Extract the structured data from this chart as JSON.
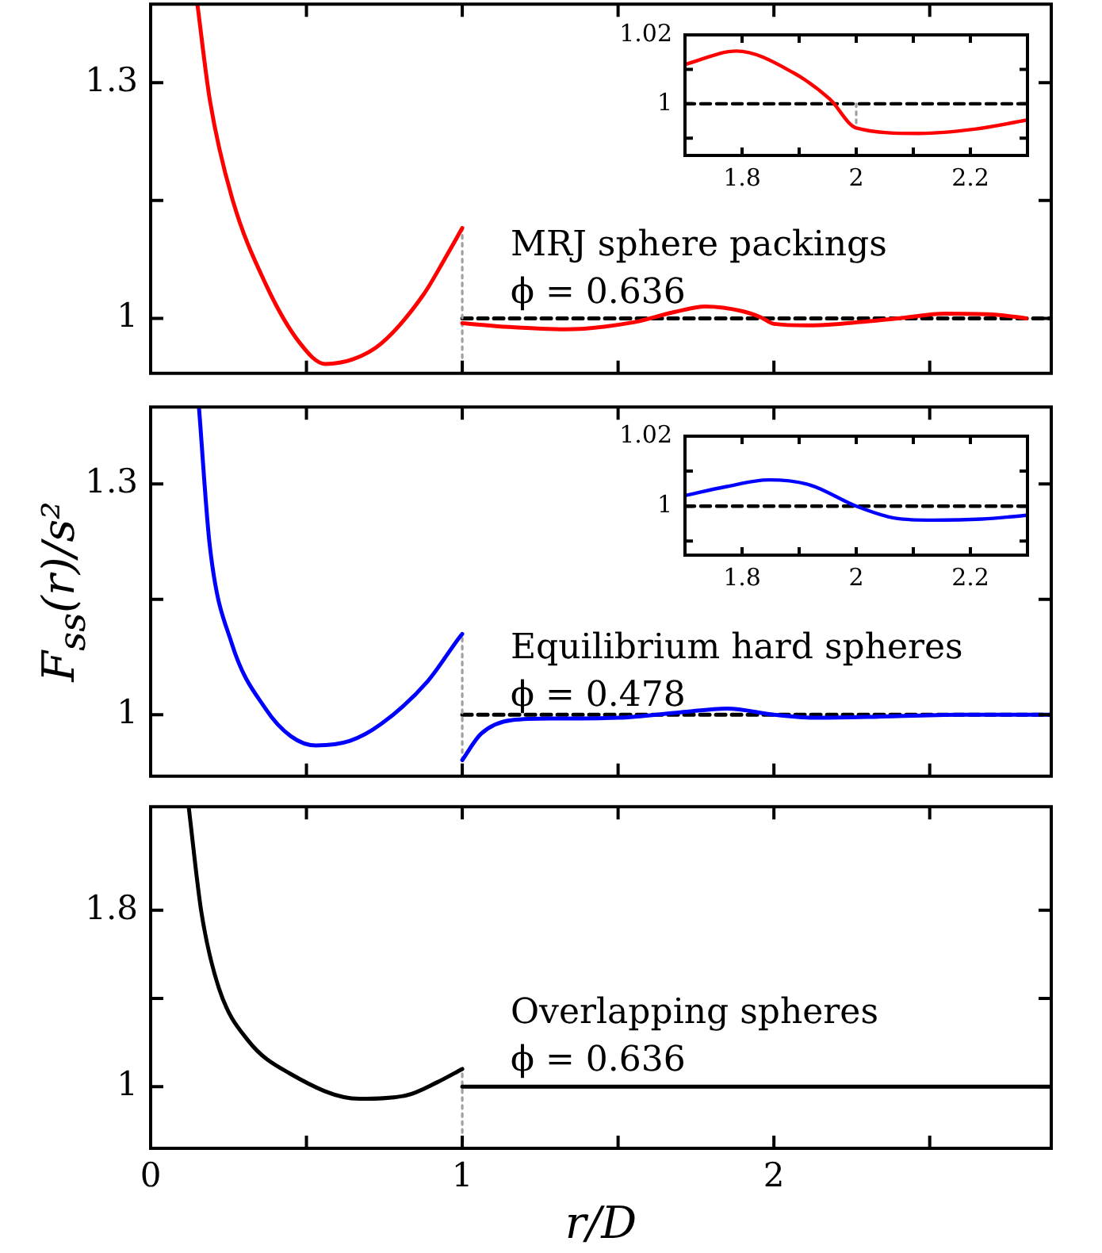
{
  "chart_data": [
    {
      "type": "line",
      "xlim": [
        0,
        2.89
      ],
      "ylim": [
        0.93,
        1.4
      ],
      "xticks": [
        0,
        {
          "value": 0.5,
          "label": null
        },
        1,
        {
          "value": 1.5,
          "label": null
        },
        2,
        {
          "value": 2.5,
          "label": null
        }
      ],
      "yticks": [
        1,
        {
          "value": 1.15,
          "label": null
        },
        1.3
      ],
      "tick_labels": "y",
      "marker": "none",
      "annotations": [
        "MRJ sphere packings",
        "ϕ = 0.636"
      ],
      "series": [
        {
          "color": "#ff0000",
          "x": [
            0.15,
            0.19,
            0.26,
            0.37,
            0.48,
            0.56,
            0.65,
            0.74,
            0.875,
            0.95,
            1
          ],
          "values": [
            1.4,
            1.278,
            1.155,
            1.043,
            0.968,
            0.942,
            0.948,
            0.968,
            1.03,
            1.08,
            1.115
          ]
        },
        {
          "color": "#ff0000",
          "x": [
            1,
            1.15,
            1.33,
            1.55,
            1.68,
            1.78,
            1.9,
            1.96,
            2.0,
            2.11,
            2.21,
            2.4,
            2.55,
            2.7,
            2.81
          ],
          "values": [
            0.994,
            0.989,
            0.986,
            0.995,
            1.008,
            1.015,
            1.009,
            1.001,
            0.993,
            0.991,
            0.993,
            1.0,
            1.006,
            1.005,
            1.0
          ]
        },
        {
          "color": "#a0a0a0",
          "line_style": "dotted",
          "x": [
            1,
            1
          ],
          "values": [
            0.93,
            1.115
          ]
        },
        {
          "color": "#000000",
          "line_style": "dashed",
          "x": [
            1,
            2.89
          ],
          "values": [
            1,
            1
          ]
        }
      ]
    },
    {
      "type": "line",
      "xlim": [
        1.7,
        2.3
      ],
      "ylim": [
        0.985,
        1.02
      ],
      "xticks": [
        1.8,
        {
          "value": 1.9,
          "label": null
        },
        2,
        {
          "value": 2.1,
          "label": null
        },
        2.2
      ],
      "yticks": [
        {
          "value": 0.99,
          "label": null
        },
        1,
        {
          "value": 1.01,
          "label": null
        },
        1.02
      ],
      "marker": "none",
      "series": [
        {
          "color": "#ff0000",
          "x": [
            1.7,
            1.79,
            1.89,
            1.954,
            2.0,
            2.11,
            2.21,
            2.3
          ],
          "values": [
            1.0114,
            1.0153,
            1.009,
            1.0013,
            0.993,
            0.9914,
            0.9927,
            0.9953
          ]
        },
        {
          "color": "#a0a0a0",
          "line_style": "dotted",
          "x": [
            2,
            2
          ],
          "values": [
            1,
            0.993
          ]
        },
        {
          "color": "#000000",
          "line_style": "dashed",
          "x": [
            1.7,
            2.3
          ],
          "values": [
            1,
            1
          ]
        }
      ]
    },
    {
      "type": "line",
      "xlim": [
        0,
        2.89
      ],
      "ylim": [
        0.92,
        1.4
      ],
      "xticks": [
        0,
        {
          "value": 0.5,
          "label": null
        },
        1,
        {
          "value": 1.5,
          "label": null
        },
        2,
        {
          "value": 2.5,
          "label": null
        }
      ],
      "yticks": [
        1,
        {
          "value": 1.15,
          "label": null
        },
        1.3
      ],
      "tick_labels": "y",
      "marker": "none",
      "ylabel": "F$_{ss}$(r)/s²",
      "annotations": [
        "Equilibrium hard spheres",
        "ϕ = 0.478"
      ],
      "series": [
        {
          "color": "#0000ff",
          "x": [
            0.155,
            0.19,
            0.26,
            0.37,
            0.45,
            0.53,
            0.64,
            0.74,
            0.89,
            0.99,
            1
          ],
          "values": [
            1.4,
            1.219,
            1.093,
            1.007,
            0.972,
            0.96,
            0.966,
            0.988,
            1.044,
            1.1,
            1.105
          ]
        },
        {
          "color": "#0000ff",
          "x": [
            1,
            1.06,
            1.16,
            1.3,
            1.5,
            1.7,
            1.85,
            2.0,
            2.13,
            2.3,
            2.6,
            2.89
          ],
          "values": [
            0.941,
            0.975,
            0.993,
            0.995,
            0.996,
            1.003,
            1.008,
            1.0,
            0.996,
            0.997,
            1.0,
            1.0
          ]
        },
        {
          "color": "#a0a0a0",
          "line_style": "dotted",
          "x": [
            1,
            1
          ],
          "values": [
            0.92,
            1.105
          ]
        },
        {
          "color": "#000000",
          "line_style": "dashed",
          "x": [
            1,
            2.89
          ],
          "values": [
            1,
            1
          ]
        }
      ]
    },
    {
      "type": "line",
      "xlim": [
        1.7,
        2.3
      ],
      "ylim": [
        0.986,
        1.02
      ],
      "xticks": [
        1.8,
        {
          "value": 1.9,
          "label": null
        },
        2,
        {
          "value": 2.1,
          "label": null
        },
        2.2
      ],
      "yticks": [
        {
          "value": 0.99,
          "label": null
        },
        1,
        {
          "value": 1.01,
          "label": null
        },
        1.02
      ],
      "marker": "none",
      "series": [
        {
          "color": "#0000ff",
          "x": [
            1.7,
            1.77,
            1.848,
            1.92,
            2.0,
            2.07,
            2.133,
            2.22,
            2.3
          ],
          "values": [
            1.003,
            1.0055,
            1.0075,
            1.006,
            1.0,
            0.9965,
            0.996,
            0.9963,
            0.9974
          ]
        },
        {
          "color": "#000000",
          "line_style": "dashed",
          "x": [
            1.7,
            2.3
          ],
          "values": [
            1,
            1
          ]
        }
      ]
    },
    {
      "type": "line",
      "xlim": [
        0,
        2.89
      ],
      "ylim": [
        0.72,
        2.27
      ],
      "xticks": [
        0,
        {
          "value": 0.5,
          "label": null
        },
        1,
        {
          "value": 1.5,
          "label": null
        },
        2,
        {
          "value": 2.5,
          "label": null
        }
      ],
      "yticks": [
        1,
        {
          "value": 1.4,
          "label": null
        },
        1.8
      ],
      "marker": "none",
      "xlabel": "r/D",
      "annotations": [
        "Overlapping spheres",
        "ϕ = 0.636"
      ],
      "series": [
        {
          "color": "#000000",
          "x": [
            0.122,
            0.163,
            0.219,
            0.314,
            0.446,
            0.67,
            0.82,
            0.92,
            1
          ],
          "values": [
            2.27,
            1.79,
            1.447,
            1.207,
            1.06,
            0.945,
            0.96,
            1.02,
            1.08
          ]
        },
        {
          "color": "#000000",
          "x": [
            1,
            2.89
          ],
          "values": [
            1,
            1
          ]
        },
        {
          "color": "#a0a0a0",
          "line_style": "dotted",
          "x": [
            1,
            1
          ],
          "values": [
            0.72,
            1.08
          ]
        }
      ]
    }
  ]
}
